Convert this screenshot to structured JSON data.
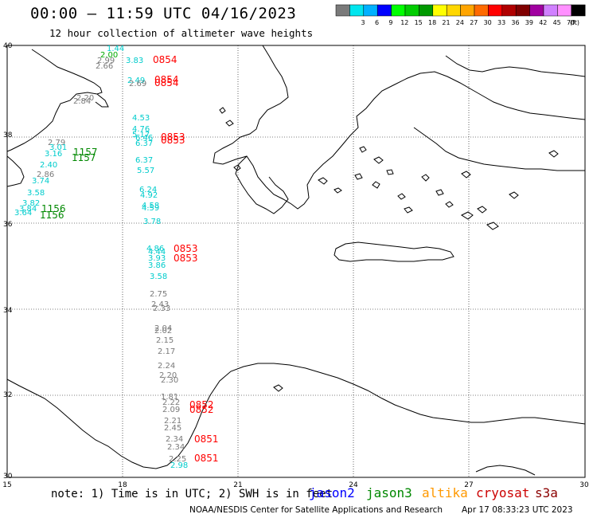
{
  "title": "00:00 – 11:59 UTC 04/16/2023",
  "subtitle": "12 hour collection of altimeter wave heights",
  "legend": {
    "unit_label": "(ft)",
    "swatches": [
      {
        "label": "",
        "color": "#7a7a7a"
      },
      {
        "label": "3",
        "color": "#00e5ee"
      },
      {
        "label": "6",
        "color": "#00b0ff"
      },
      {
        "label": "9",
        "color": "#0000ff"
      },
      {
        "label": "12",
        "color": "#00ff00"
      },
      {
        "label": "15",
        "color": "#00cc00"
      },
      {
        "label": "18",
        "color": "#009900"
      },
      {
        "label": "21",
        "color": "#ffff00"
      },
      {
        "label": "24",
        "color": "#ffd700"
      },
      {
        "label": "27",
        "color": "#ffa500"
      },
      {
        "label": "30",
        "color": "#ff6a00"
      },
      {
        "label": "33",
        "color": "#ff0000"
      },
      {
        "label": "36",
        "color": "#b00000"
      },
      {
        "label": "39",
        "color": "#800000"
      },
      {
        "label": "42",
        "color": "#a000a0"
      },
      {
        "label": "45",
        "color": "#d080ff"
      },
      {
        "label": "70",
        "color": "#ff90ff"
      },
      {
        "label": "",
        "color": "#000000"
      }
    ]
  },
  "axes": {
    "lat_labels": [
      "40",
      "38",
      "36",
      "34",
      "32",
      "30"
    ],
    "lon_labels": [
      "15",
      "18",
      "21",
      "24",
      "27",
      "30"
    ]
  },
  "observations": [
    {
      "text": "1.44",
      "color": "#00cccc"
    },
    {
      "text": "2.00",
      "color": "#00aa00"
    },
    {
      "text": "2.99",
      "color": "#7a7a7a"
    },
    {
      "text": "3.83",
      "color": "#00cccc"
    },
    {
      "text": "2.66",
      "color": "#7a7a7a"
    },
    {
      "text": "2.49",
      "color": "#00cccc"
    },
    {
      "text": "2.69",
      "color": "#7a7a7a"
    },
    {
      "text": "2.84",
      "color": "#7a7a7a"
    },
    {
      "text": "4.53",
      "color": "#00cccc"
    },
    {
      "text": "4.76",
      "color": "#00cccc"
    },
    {
      "text": "5.17",
      "color": "#00cccc"
    },
    {
      "text": "6.46",
      "color": "#00cccc"
    },
    {
      "text": "6.37",
      "color": "#00cccc"
    },
    {
      "text": "6.37",
      "color": "#00cccc"
    },
    {
      "text": "5.57",
      "color": "#00cccc"
    },
    {
      "text": "6.24",
      "color": "#00cccc"
    },
    {
      "text": "4.92",
      "color": "#00cccc"
    },
    {
      "text": "4.58",
      "color": "#00cccc"
    },
    {
      "text": "4.59",
      "color": "#00cccc"
    },
    {
      "text": "3.78",
      "color": "#00cccc"
    },
    {
      "text": "4.86",
      "color": "#00cccc"
    },
    {
      "text": "4.44",
      "color": "#00cccc"
    },
    {
      "text": "3.93",
      "color": "#00cccc"
    },
    {
      "text": "3.86",
      "color": "#00cccc"
    },
    {
      "text": "3.58",
      "color": "#00cccc"
    },
    {
      "text": "2.75",
      "color": "#7a7a7a"
    },
    {
      "text": "2.43",
      "color": "#7a7a7a"
    },
    {
      "text": "2.33",
      "color": "#7a7a7a"
    },
    {
      "text": "2.04",
      "color": "#7a7a7a"
    },
    {
      "text": "2.02",
      "color": "#7a7a7a"
    },
    {
      "text": "2.15",
      "color": "#7a7a7a"
    },
    {
      "text": "2.17",
      "color": "#7a7a7a"
    },
    {
      "text": "2.24",
      "color": "#7a7a7a"
    },
    {
      "text": "2.20",
      "color": "#7a7a7a"
    },
    {
      "text": "2.30",
      "color": "#7a7a7a"
    },
    {
      "text": "1.81",
      "color": "#7a7a7a"
    },
    {
      "text": "2.22",
      "color": "#7a7a7a"
    },
    {
      "text": "2.09",
      "color": "#7a7a7a"
    },
    {
      "text": "2.21",
      "color": "#7a7a7a"
    },
    {
      "text": "2.45",
      "color": "#7a7a7a"
    },
    {
      "text": "2.34",
      "color": "#7a7a7a"
    },
    {
      "text": "2.34",
      "color": "#7a7a7a"
    },
    {
      "text": "2.25",
      "color": "#7a7a7a"
    },
    {
      "text": "2.98",
      "color": "#00cccc"
    },
    {
      "text": "2.20",
      "color": "#7a7a7a"
    },
    {
      "text": "2.79",
      "color": "#7a7a7a"
    },
    {
      "text": "2.40",
      "color": "#00cccc"
    },
    {
      "text": "3.74",
      "color": "#00cccc"
    },
    {
      "text": "3.58",
      "color": "#00cccc"
    },
    {
      "text": "3.82",
      "color": "#00cccc"
    },
    {
      "text": "3.84",
      "color": "#00cccc"
    },
    {
      "text": "2.86",
      "color": "#7a7a7a"
    },
    {
      "text": "3.16",
      "color": "#00cccc"
    },
    {
      "text": "3.01",
      "color": "#00cccc"
    },
    {
      "text": "3.64",
      "color": "#00cccc"
    }
  ],
  "track_times": [
    {
      "text": "0854",
      "color": "#ff0000"
    },
    {
      "text": "0854",
      "color": "#ff0000"
    },
    {
      "text": "0854",
      "color": "#ff0000"
    },
    {
      "text": "0853",
      "color": "#ff0000"
    },
    {
      "text": "0853",
      "color": "#ff0000"
    },
    {
      "text": "0853",
      "color": "#ff0000"
    },
    {
      "text": "0853",
      "color": "#ff0000"
    },
    {
      "text": "0852",
      "color": "#ff0000"
    },
    {
      "text": "0852",
      "color": "#ff0000"
    },
    {
      "text": "0851",
      "color": "#ff0000"
    },
    {
      "text": "0851",
      "color": "#ff0000"
    },
    {
      "text": "1157",
      "color": "#008800"
    },
    {
      "text": "1157",
      "color": "#008800"
    },
    {
      "text": "1156",
      "color": "#008800"
    },
    {
      "text": "1156",
      "color": "#008800"
    }
  ],
  "note": "note: 1) Time is in UTC; 2) SWH is in feet",
  "satellites": [
    {
      "name": "jason2",
      "color": "#0000ff"
    },
    {
      "name": "jason3",
      "color": "#008800"
    },
    {
      "name": "altika",
      "color": "#ff9900"
    },
    {
      "name": "cryosat",
      "color": "#cc0000"
    },
    {
      "name": "s3a",
      "color": "#8b0000"
    }
  ],
  "footer": {
    "credit": "NOAA/NESDIS Center for Satellite Applications and Research",
    "timestamp": "Apr 17 08:33:23 UTC 2023"
  }
}
